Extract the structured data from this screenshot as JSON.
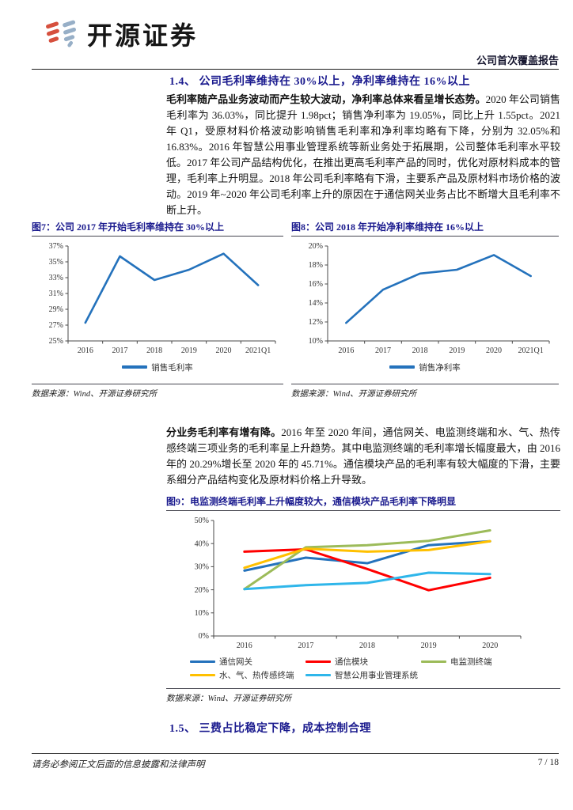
{
  "header": {
    "brand": "开源证券",
    "report_type": "公司首次覆盖报告"
  },
  "sections": {
    "s14": "1.4、 公司毛利率维持在 30%以上，净利率维持在 16%以上",
    "s15": "1.5、 三费占比稳定下降，成本控制合理"
  },
  "paragraphs": {
    "p1_lead": "毛利率随产品业务波动而产生较大波动，净利率总体来看呈增长态势。",
    "p1_rest": "2020 年公司销售毛利率为 36.03%，同比提升 1.98pct；销售净利率为 19.05%，同比上升 1.55pct。2021 年 Q1，受原材料价格波动影响销售毛利率和净利率均略有下降，分别为 32.05%和 16.83%。2016 年智慧公用事业管理系统等新业务处于拓展期，公司整体毛利率水平较低。2017 年公司产品结构优化，在推出更高毛利率产品的同时，优化对原材料成本的管理，毛利率上升明显。2018 年公司毛利率略有下滑，主要系产品及原材料市场价格的波动。2019 年~2020 年公司毛利率上升的原因在于通信网关业务占比不断增大且毛利率不断上升。",
    "p2_lead": "分业务毛利率有增有降。",
    "p2_rest": "2016 年至 2020 年间，通信网关、电监测终端和水、气、热传感终端三项业务的毛利率呈上升趋势。其中电监测终端的毛利率增长幅度最大，由 2016 年的 20.29%增长至 2020 年的 45.71%。通信模块产品的毛利率有较大幅度的下滑，主要系细分产品结构变化及原材料价格上升导致。"
  },
  "chart_data": [
    {
      "id": "fig7",
      "type": "line",
      "title": "图7：公司 2017 年开始毛利率维持在 30%以上",
      "source": "数据来源：Wind、开源证券研究所",
      "categories": [
        "2016",
        "2017",
        "2018",
        "2019",
        "2020",
        "2021Q1"
      ],
      "ylim": [
        25,
        37
      ],
      "y_tick_labels": [
        "25%",
        "27%",
        "29%",
        "31%",
        "33%",
        "35%",
        "37%"
      ],
      "grid": false,
      "legend_position": "bottom",
      "series": [
        {
          "name": "销售毛利率",
          "color": "#2472BC",
          "values": [
            27.3,
            35.7,
            32.7,
            34.0,
            36.03,
            32.05
          ]
        }
      ]
    },
    {
      "id": "fig8",
      "type": "line",
      "title": "图8：公司 2018 年开始净利率维持在 16%以上",
      "source": "数据来源：Wind、开源证券研究所",
      "categories": [
        "2016",
        "2017",
        "2018",
        "2019",
        "2020",
        "2021Q1"
      ],
      "ylim": [
        10,
        20
      ],
      "y_tick_labels": [
        "10%",
        "12%",
        "14%",
        "16%",
        "18%",
        "20%"
      ],
      "grid": false,
      "legend_position": "bottom",
      "series": [
        {
          "name": "销售净利率",
          "color": "#2472BC",
          "values": [
            11.9,
            15.4,
            17.1,
            17.5,
            19.05,
            16.83
          ]
        }
      ]
    },
    {
      "id": "fig9",
      "type": "line",
      "title": "图9：电监测终端毛利率上升幅度较大，通信模块产品毛利率下降明显",
      "source": "数据来源：Wind、开源证券研究所",
      "categories": [
        "2016",
        "2017",
        "2018",
        "2019",
        "2020"
      ],
      "ylim": [
        0,
        50
      ],
      "y_tick_labels": [
        "0%",
        "10%",
        "20%",
        "30%",
        "40%",
        "50%"
      ],
      "grid": false,
      "legend_position": "bottom",
      "series": [
        {
          "name": "通信网关",
          "color": "#2472BC",
          "values": [
            28.3,
            33.9,
            31.5,
            39.3,
            41.0
          ]
        },
        {
          "name": "通信模块",
          "color": "#FF0000",
          "values": [
            36.5,
            37.5,
            29.0,
            19.8,
            25.2
          ]
        },
        {
          "name": "电监测终端",
          "color": "#9CBB59",
          "values": [
            20.29,
            38.4,
            39.3,
            41.2,
            45.71
          ]
        },
        {
          "name": "水、气、热传感终端",
          "color": "#FFC000",
          "values": [
            29.5,
            37.8,
            36.5,
            37.2,
            41.0
          ]
        },
        {
          "name": "智慧公用事业管理系统",
          "color": "#2FB6EA",
          "values": [
            20.3,
            22.0,
            23.0,
            27.4,
            26.8
          ]
        }
      ]
    }
  ],
  "colors": {
    "heading_navy": "#1a1a8e",
    "logo_red": "#D6503E",
    "logo_blue": "#97AFC7"
  },
  "footer": {
    "disclaimer": "请务必参阅正文后面的信息披露和法律声明",
    "page": "7 / 18"
  }
}
